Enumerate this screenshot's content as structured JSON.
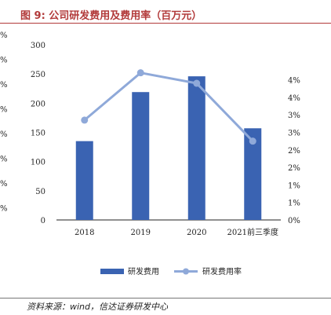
{
  "title": "图 9:  公司研发费用及费用率（百万元）",
  "source": "资料来源：wind，信达证券研发中心",
  "colors": {
    "bar": "#3a63b2",
    "line": "#8fa9d9",
    "title": "#b23a3a"
  },
  "chart_data": {
    "type": "bar+line",
    "categories": [
      "2018",
      "2019",
      "2020",
      "2021前三季度"
    ],
    "series": [
      {
        "name": "研发费用",
        "type": "bar",
        "axis": "left",
        "values": [
          135,
          219,
          246,
          157
        ]
      },
      {
        "name": "研发费用率",
        "type": "line",
        "axis": "right",
        "values": [
          2.85,
          4.2,
          3.9,
          2.25
        ]
      }
    ],
    "left_axis": {
      "ylim": [
        0,
        300
      ],
      "ticks": [
        "0",
        "50",
        "100",
        "150",
        "200",
        "250",
        "300"
      ]
    },
    "right_axis": {
      "ylim": [
        0,
        5
      ],
      "ticks": [
        "0%",
        "1%",
        "1%",
        "2%",
        "2%",
        "3%",
        "3%",
        "4%",
        "4%"
      ],
      "tick_values": [
        0,
        0.5,
        1,
        1.5,
        2,
        2.5,
        3,
        3.5,
        4
      ]
    },
    "left_edge_labels": [
      "%",
      "%",
      "%",
      "%",
      "%",
      "%",
      "%",
      "%"
    ],
    "legend_position": "bottom-center",
    "grid": false
  }
}
